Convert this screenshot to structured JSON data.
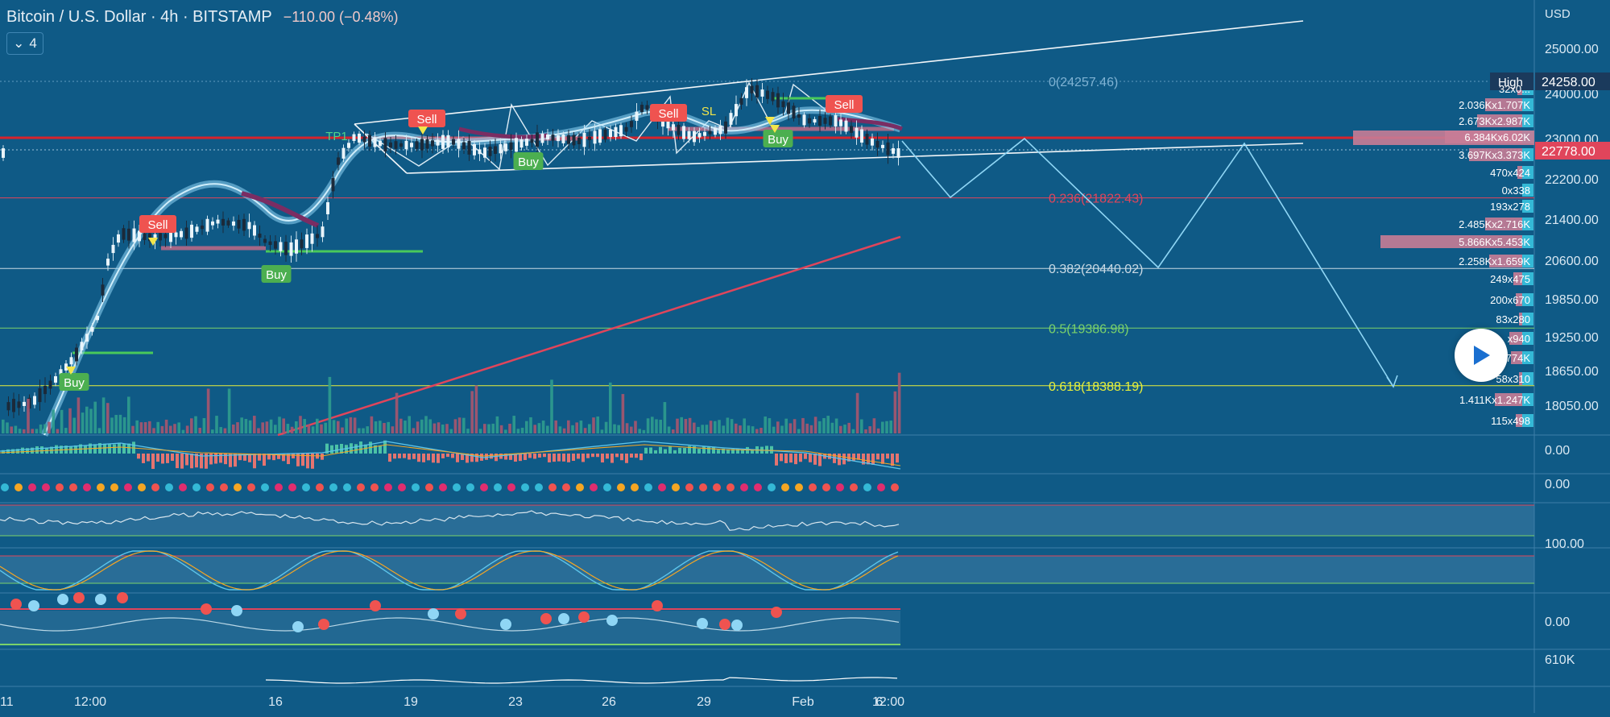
{
  "header": {
    "title": "Bitcoin / U.S. Dollar · 4h · BITSTAMP",
    "change": "−110.00 (−0.48%)",
    "indicator_count": "4",
    "currency": "USD"
  },
  "colors": {
    "background": "#0f5a86",
    "fib_red": "#e0455b",
    "fib_green": "#7bd26a",
    "fib_yellow": "#e8f03a",
    "price_line": "#d7232c",
    "projection": "#8fd6f5",
    "buy_label": "#4caf50",
    "sell_label": "#ef5350"
  },
  "chart_data": {
    "type": "line",
    "title": "Bitcoin / U.S. Dollar · 4h · BITSTAMP",
    "price_axis": {
      "ticks": [
        25000,
        24000,
        23000,
        22200,
        21400,
        20600,
        19850,
        19250,
        18650,
        18050
      ],
      "tick_labels": [
        "25000.00",
        "24000.00",
        "23000.00",
        "22200.00",
        "21400.00",
        "20600.00",
        "19850.00",
        "19250.00",
        "18650.00",
        "18050.00"
      ],
      "high_label": "High",
      "high_value": "24258.00",
      "current_value": "22778.00"
    },
    "time_axis": {
      "labels": [
        "11",
        "12:00",
        "16",
        "19",
        "23",
        "26",
        "29",
        "Feb",
        "12:00",
        "6"
      ]
    },
    "fib_levels": [
      {
        "label": "0(24257.46)",
        "value": 24257.46,
        "color": "#7fb2d3"
      },
      {
        "label": "0.236(21822.43)",
        "value": 21822.43,
        "color": "#e0455b"
      },
      {
        "label": "0.382(20440.02)",
        "value": 20440.02,
        "color": "#c9d9e4"
      },
      {
        "label": "0.5(19386.98)",
        "value": 19386.98,
        "color": "#7bd26a"
      },
      {
        "label": "0.618(18388.19)",
        "value": 18388.19,
        "color": "#e8f03a"
      }
    ],
    "signals": [
      {
        "text": "Sell",
        "kind": "sell"
      },
      {
        "text": "Sell",
        "kind": "sell"
      },
      {
        "text": "Sell",
        "kind": "sell"
      },
      {
        "text": "Sell",
        "kind": "sell"
      },
      {
        "text": "Buy",
        "kind": "buy"
      },
      {
        "text": "Buy",
        "kind": "buy"
      },
      {
        "text": "Buy",
        "kind": "buy"
      },
      {
        "text": "Buy",
        "kind": "buy"
      },
      {
        "text": "TP1",
        "kind": "tp"
      },
      {
        "text": "SL",
        "kind": "sl"
      }
    ],
    "volume_profile": [
      {
        "label": "32x0..."
      },
      {
        "label": "2.036Kx1.707K"
      },
      {
        "label": "2.673Kx2.987K"
      },
      {
        "label": "6.384Kx6.02K"
      },
      {
        "label": "3.697Kx3.373K"
      },
      {
        "label": "470x424"
      },
      {
        "label": "0x338"
      },
      {
        "label": "193x278"
      },
      {
        "label": "2.485Kx2.716K"
      },
      {
        "label": "5.866Kx5.453K"
      },
      {
        "label": "2.258Kx1.659K"
      },
      {
        "label": "249x475"
      },
      {
        "label": "200x670"
      },
      {
        "label": "83x280"
      },
      {
        "label": "x940"
      },
      {
        "label": "774K"
      },
      {
        "label": "58x310"
      },
      {
        "label": "1.411Kx1.247K"
      },
      {
        "label": "115x498"
      }
    ],
    "indicator_scales": [
      "0.00",
      "0.00",
      "100.00",
      "0.00",
      "610K"
    ],
    "grid": false
  }
}
